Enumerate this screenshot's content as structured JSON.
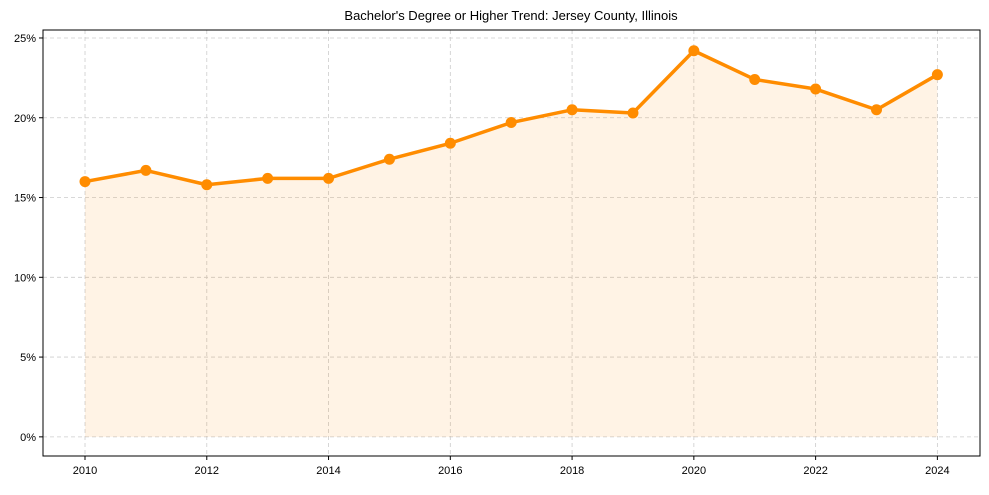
{
  "chart_data": {
    "type": "line",
    "title": "Bachelor's Degree or Higher Trend: Jersey County, Illinois",
    "xlabel": "",
    "ylabel": "",
    "x": [
      2010,
      2011,
      2012,
      2013,
      2014,
      2015,
      2016,
      2017,
      2018,
      2019,
      2020,
      2021,
      2022,
      2023,
      2024
    ],
    "series": [
      {
        "name": "Bachelor's Degree or Higher",
        "values": [
          16.0,
          16.7,
          15.8,
          16.2,
          16.2,
          17.4,
          18.4,
          19.7,
          20.5,
          20.3,
          24.2,
          22.4,
          21.8,
          20.5,
          22.7
        ]
      }
    ],
    "xlim": [
      2009.31,
      2024.7
    ],
    "ylim": [
      -1.2,
      25.5
    ],
    "xticks": [
      2010,
      2012,
      2014,
      2016,
      2018,
      2020,
      2022,
      2024
    ],
    "xtick_labels": [
      "2010",
      "2012",
      "2014",
      "2016",
      "2018",
      "2020",
      "2022",
      "2024"
    ],
    "yticks": [
      0,
      5,
      10,
      15,
      20,
      25
    ],
    "ytick_labels": [
      "0%",
      "5%",
      "10%",
      "15%",
      "20%",
      "25%"
    ],
    "grid": true,
    "line_color": "#ff8c00",
    "fill_color": "#ff8c00"
  }
}
